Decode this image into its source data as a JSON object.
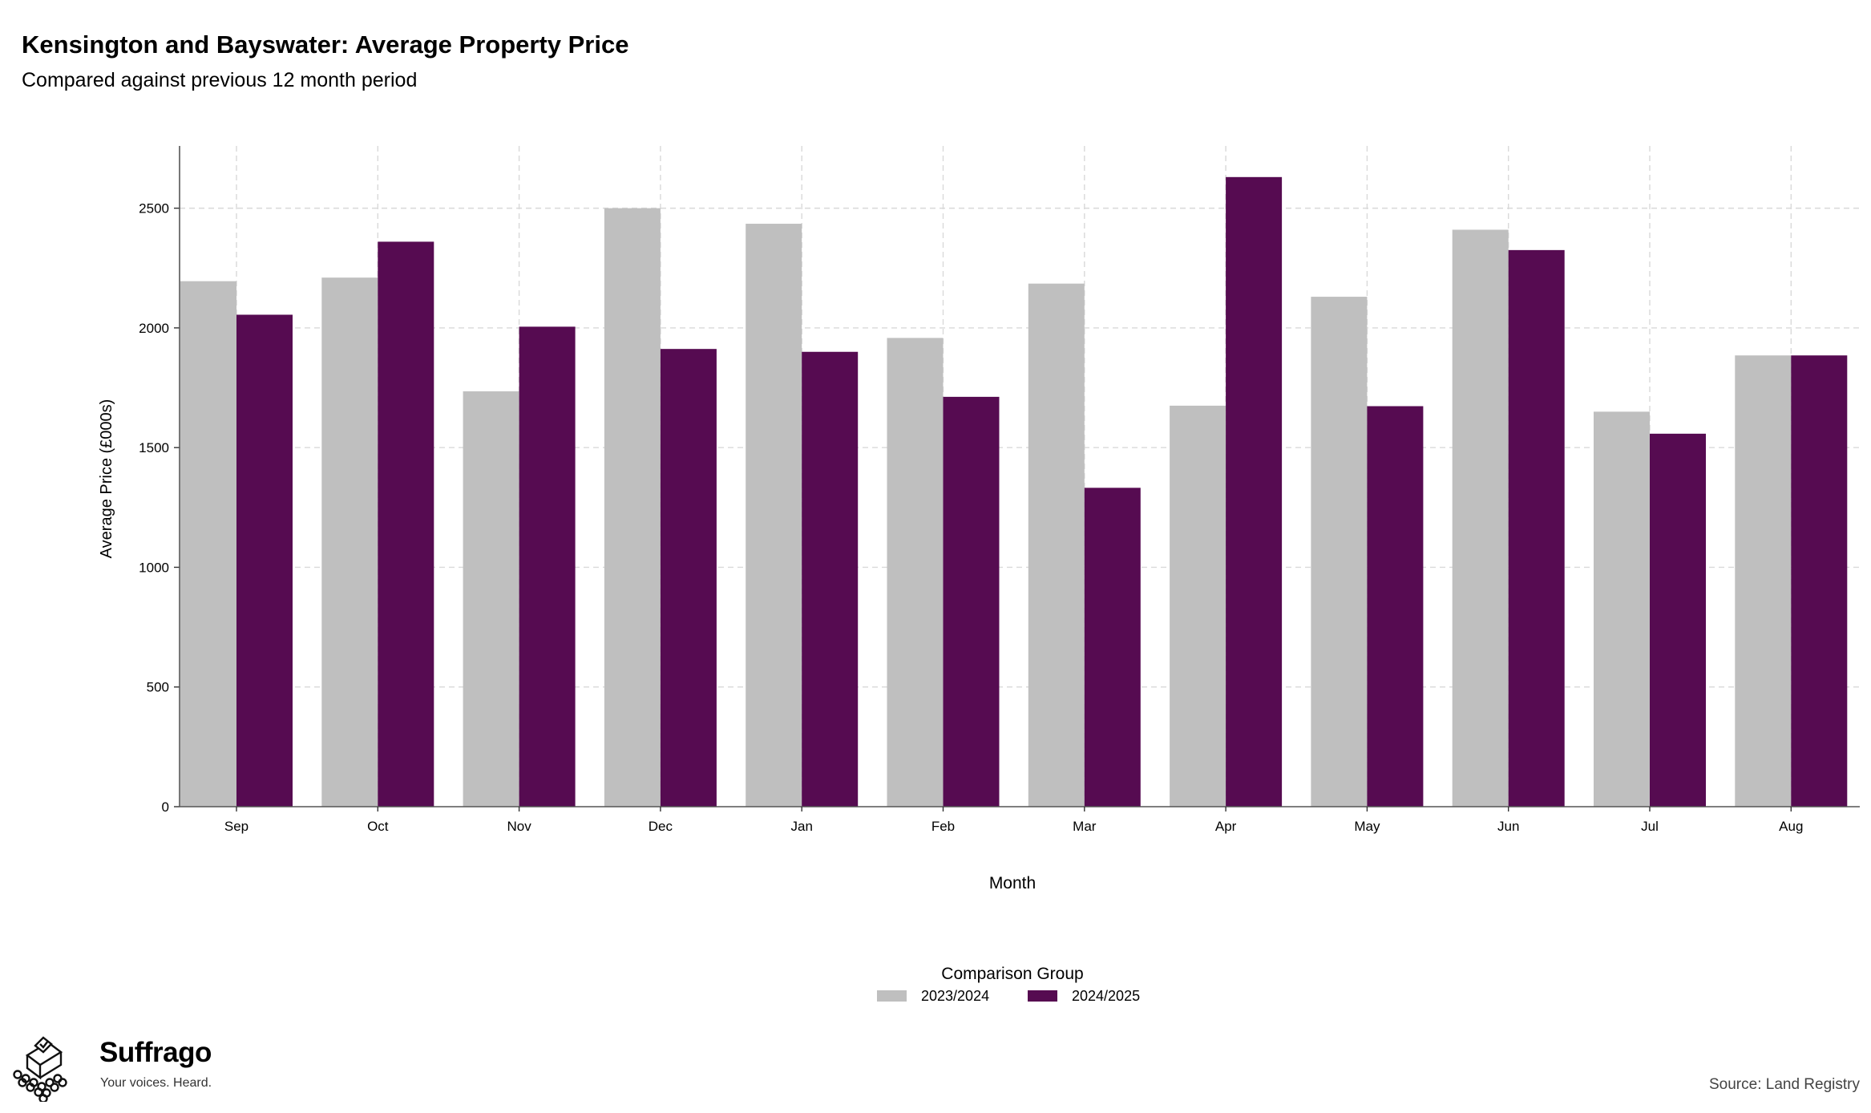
{
  "header": {
    "title": "Kensington and Bayswater: Average Property Price",
    "subtitle": "Compared against previous 12 month period"
  },
  "footer": {
    "brand_name": "Suffrago",
    "brand_tagline": "Your voices. Heard.",
    "source": "Source: Land Registry"
  },
  "colors": {
    "series_2023_2024": "#bfbfbf",
    "series_2024_2025": "#560b51",
    "grid": "#d9d9d9"
  },
  "chart_data": {
    "type": "bar",
    "title": "Kensington and Bayswater: Average Property Price",
    "subtitle": "Compared against previous 12 month period",
    "xlabel": "Month",
    "ylabel": "Average Price (£000s)",
    "categories": [
      "Sep",
      "Oct",
      "Nov",
      "Dec",
      "Jan",
      "Feb",
      "Mar",
      "Apr",
      "May",
      "Jun",
      "Jul",
      "Aug"
    ],
    "ylim": [
      0,
      2760
    ],
    "yticks": [
      0,
      500,
      1000,
      1500,
      2000,
      2500
    ],
    "grid": true,
    "legend": {
      "title": "Comparison Group",
      "position": "bottom"
    },
    "series": [
      {
        "name": "2023/2024",
        "values": [
          2195,
          2210,
          1735,
          2500,
          2435,
          1958,
          2185,
          1675,
          2130,
          2410,
          1650,
          1885
        ]
      },
      {
        "name": "2024/2025",
        "values": [
          2055,
          2360,
          2005,
          1912,
          1900,
          1712,
          1332,
          2630,
          1673,
          2325,
          1558,
          1885
        ]
      }
    ]
  }
}
